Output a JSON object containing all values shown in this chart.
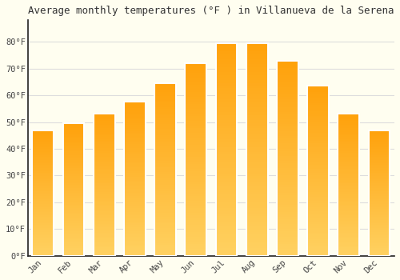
{
  "title": "Average monthly temperatures (°F ) in Villanueva de la Serena",
  "months": [
    "Jan",
    "Feb",
    "Mar",
    "Apr",
    "May",
    "Jun",
    "Jul",
    "Aug",
    "Sep",
    "Oct",
    "Nov",
    "Dec"
  ],
  "values": [
    47,
    49.5,
    53,
    57.5,
    64.5,
    72,
    79.5,
    79.5,
    73,
    63.5,
    53,
    47
  ],
  "bar_color_bottom": "#FFD060",
  "bar_color_top": "#FFA010",
  "ylim": [
    0,
    88
  ],
  "yticks": [
    0,
    10,
    20,
    30,
    40,
    50,
    60,
    70,
    80
  ],
  "ytick_labels": [
    "0°F",
    "10°F",
    "20°F",
    "30°F",
    "40°F",
    "50°F",
    "60°F",
    "70°F",
    "80°F"
  ],
  "background_color": "#FFFEF0",
  "grid_color": "#DDDDDD",
  "title_fontsize": 9,
  "tick_fontsize": 7.5,
  "bar_width": 0.7
}
